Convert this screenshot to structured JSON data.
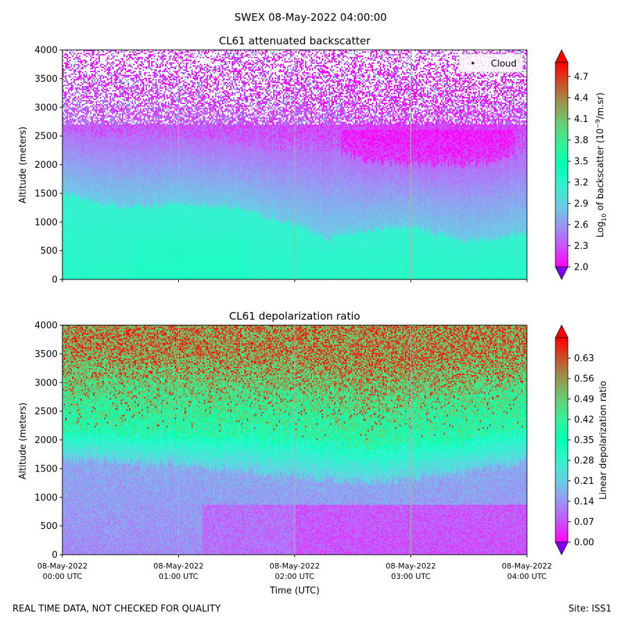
{
  "page": {
    "suptitle": "SWEX 08-May-2022 04:00:00",
    "footer_left": "REAL TIME DATA, NOT CHECKED FOR QUALITY",
    "footer_right": "Site: ISS1"
  },
  "chart_data": [
    {
      "type": "heatmap",
      "title": "CL61 attenuated backscatter",
      "ylabel": "Altitude (meters)",
      "ylim": [
        0,
        4000
      ],
      "yticks": [
        "0",
        "500",
        "1000",
        "1500",
        "2000",
        "2500",
        "3000",
        "3500",
        "4000"
      ],
      "colorbar": {
        "label_main": "Log",
        "label_sub": "10",
        "label_rest": " of backscatter (10",
        "label_sup": "−9",
        "label_end": "/m.sr)",
        "range": [
          2.0,
          4.9
        ],
        "ticks": [
          "2.0",
          "2.3",
          "2.6",
          "2.9",
          "3.2",
          "3.5",
          "3.8",
          "4.1",
          "4.4",
          "4.7"
        ],
        "extend": "both",
        "colormap": "rainbow"
      },
      "legend": {
        "label": "Cloud",
        "location": "top-right"
      },
      "xtick_labels_visible": false,
      "profile": {
        "time_hours": [
          0,
          0.5,
          1,
          1.5,
          2,
          2.3,
          2.6,
          3,
          3.5,
          4
        ],
        "surface_layer_top_m": [
          1500,
          1250,
          1300,
          1250,
          950,
          700,
          850,
          900,
          650,
          800
        ],
        "blue_layer_top_m": [
          2600,
          2500,
          2500,
          2400,
          2300,
          2300,
          2100,
          2000,
          2000,
          2200
        ],
        "noise_start_m": 2900
      }
    },
    {
      "type": "heatmap",
      "title": "CL61 depolarization ratio",
      "ylabel": "Altitude (meters)",
      "xlabel": "Time (UTC)",
      "ylim": [
        0,
        4000
      ],
      "yticks": [
        "0",
        "500",
        "1000",
        "1500",
        "2000",
        "2500",
        "3000",
        "3500",
        "4000"
      ],
      "xticks": [
        {
          "line1": "08-May-2022",
          "line2": "00:00 UTC"
        },
        {
          "line1": "08-May-2022",
          "line2": "01:00 UTC"
        },
        {
          "line1": "08-May-2022",
          "line2": "02:00 UTC"
        },
        {
          "line1": "08-May-2022",
          "line2": "03:00 UTC"
        },
        {
          "line1": "08-May-2022",
          "line2": "04:00 UTC"
        }
      ],
      "colorbar": {
        "label": "Linear depolarization ratio",
        "range": [
          0.0,
          0.7
        ],
        "ticks": [
          "0.00",
          "0.07",
          "0.14",
          "0.21",
          "0.28",
          "0.35",
          "0.42",
          "0.49",
          "0.56",
          "0.63"
        ],
        "extend": "both",
        "colormap": "rainbow"
      },
      "profile": {
        "time_hours": [
          0,
          0.5,
          1,
          1.5,
          2,
          2.3,
          2.6,
          3,
          3.5,
          4
        ],
        "low_layer_top_m": [
          1650,
          1600,
          1550,
          1450,
          1350,
          1300,
          1250,
          1300,
          1450,
          1600
        ],
        "transition_top_m": [
          2100,
          2100,
          2050,
          2050,
          2000,
          1950,
          1850,
          1900,
          2000,
          2150
        ]
      }
    }
  ]
}
